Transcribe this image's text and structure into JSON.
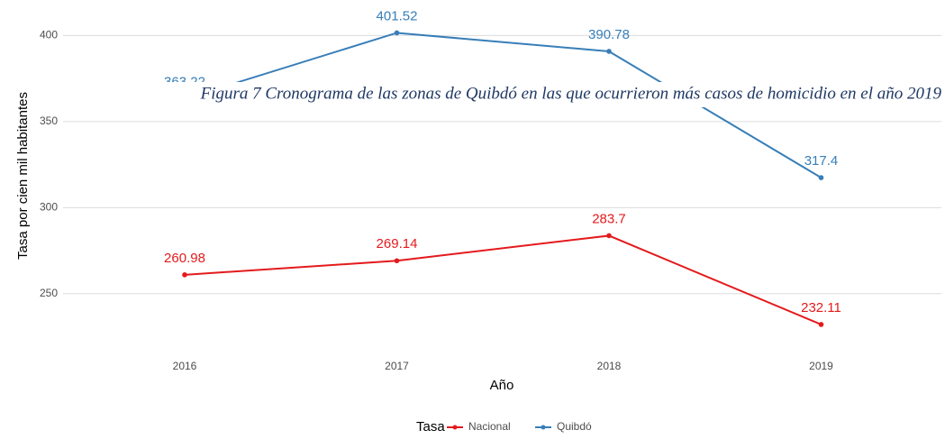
{
  "caption": "Figura 7 Cronograma de las zonas de Quibdó en las que ocurrieron más casos de homicidio en el año 2019",
  "chart_data": {
    "type": "line",
    "x_label": "Año",
    "y_label": "Tasa por cien mil habitantes",
    "categories": [
      "2016",
      "2017",
      "2018",
      "2019"
    ],
    "series": [
      {
        "name": "Nacional",
        "color": "#e41a1c",
        "values": [
          260.98,
          269.14,
          283.7,
          232.11
        ]
      },
      {
        "name": "Quibdó",
        "color": "#377eb8",
        "values": [
          363.22,
          401.52,
          390.78,
          317.4
        ]
      }
    ],
    "ylim": [
      219,
      418
    ],
    "yticks": [
      250,
      300,
      350,
      400
    ],
    "grid": true,
    "legend_title": "Tasa",
    "legend_position": "bottom"
  }
}
